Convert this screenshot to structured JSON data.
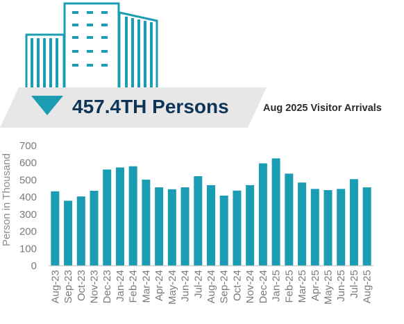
{
  "header": {
    "headline": "457.4TH Persons",
    "subtitle": "Aug 2025 Visitor Arrivals"
  },
  "colors": {
    "accent": "#1a9db3",
    "banner": "#e7e7e7",
    "headline": "#0d3557",
    "axis_text": "#7a7a7a"
  },
  "icons": [
    "office-buildings-icon",
    "down-triangle-icon"
  ],
  "chart_data": {
    "type": "bar",
    "title": "",
    "xlabel": "",
    "ylabel": "Person in Thousand",
    "ylim": [
      0,
      700
    ],
    "yticks": [
      0,
      100,
      200,
      300,
      400,
      500,
      600,
      700
    ],
    "grid": false,
    "legend": "none",
    "categories": [
      "Aug-23",
      "Sep-23",
      "Oct-23",
      "Nov-23",
      "Dec-23",
      "Jan-24",
      "Feb-24",
      "Mar-24",
      "Apr-24",
      "May-24",
      "Jun-24",
      "Jul-24",
      "Aug-24",
      "Sep-24",
      "Oct-24",
      "Nov-24",
      "Dec-24",
      "Jan-25",
      "Feb-25",
      "Mar-25",
      "Apr-25",
      "May-25",
      "Jun-25",
      "Jul-25",
      "Aug-25"
    ],
    "values": [
      434,
      379,
      404,
      437,
      561,
      573,
      580,
      502,
      457,
      446,
      457,
      522,
      470,
      409,
      438,
      470,
      597,
      626,
      537,
      485,
      448,
      441,
      448,
      505,
      457
    ]
  }
}
